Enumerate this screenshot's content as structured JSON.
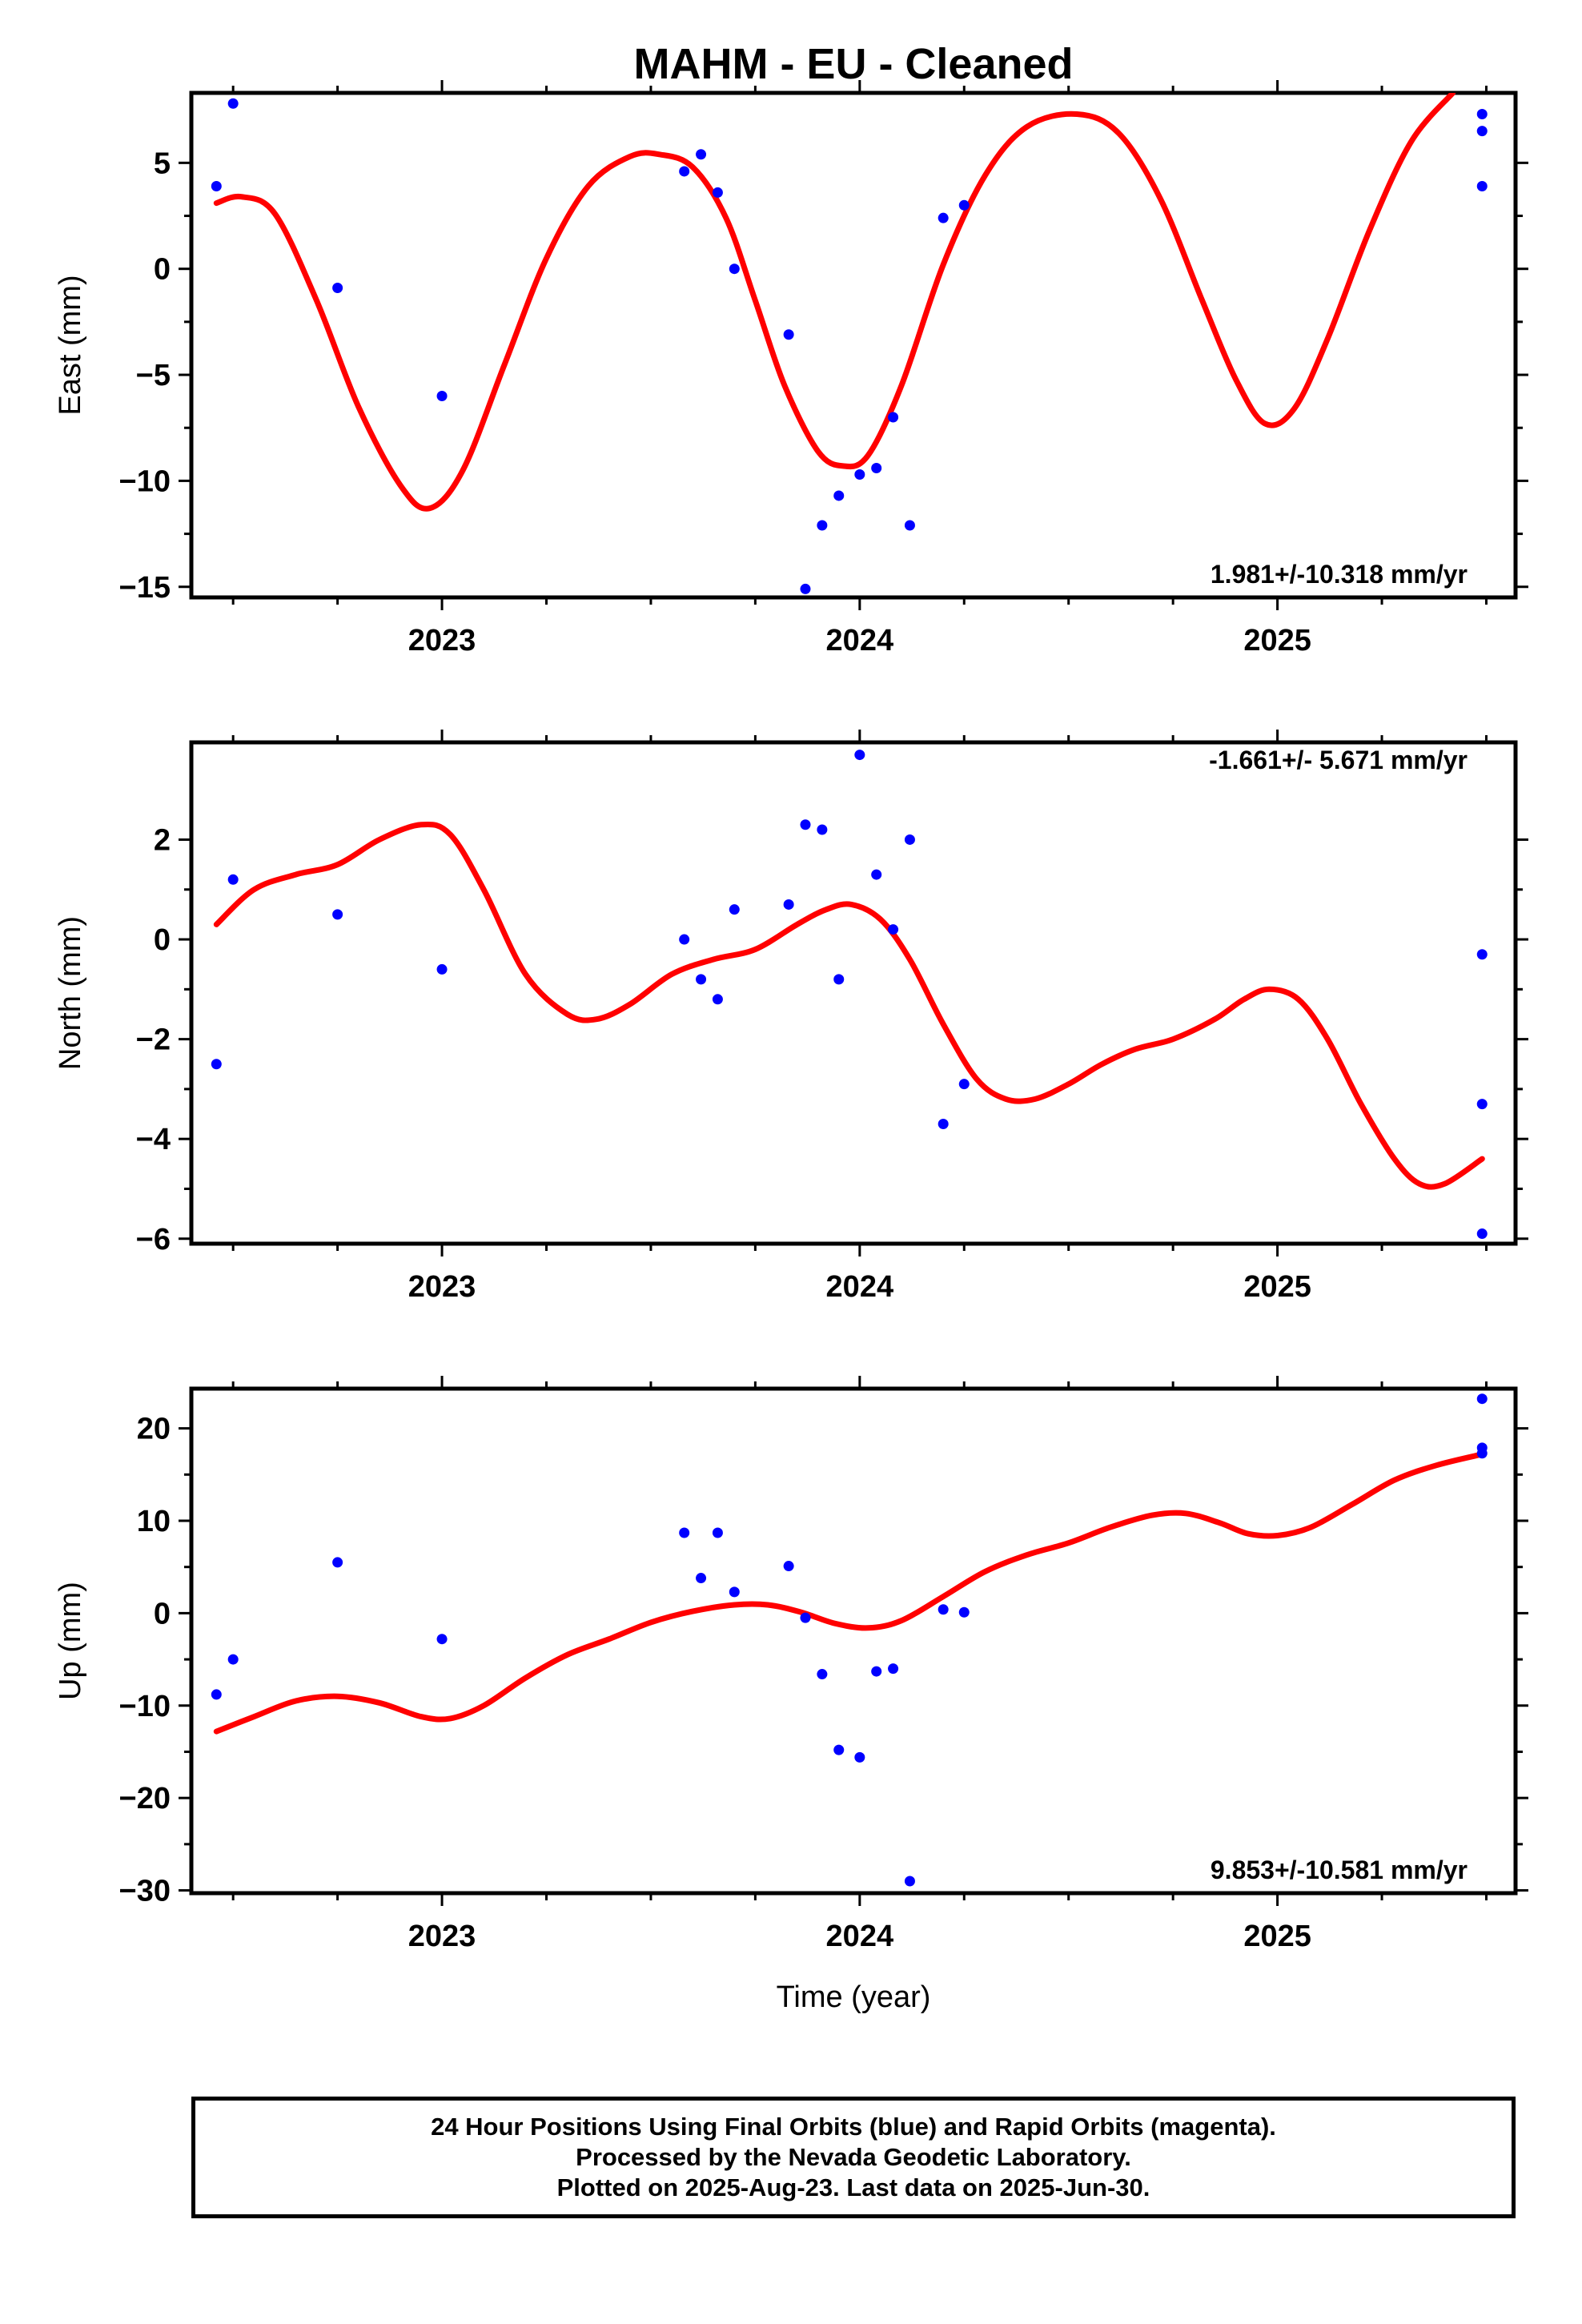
{
  "title": "MAHM  - EU - Cleaned",
  "xlabel": "Time (year)",
  "colors": {
    "points": "#0000ff",
    "fit": "#ff0000",
    "axis": "#000000"
  },
  "footer": {
    "line1": "24 Hour Positions Using Final Orbits (blue) and Rapid Orbits (magenta).",
    "line2": "Processed by the Nevada Geodetic Laboratory.",
    "line3": "Plotted on 2025-Aug-23. Last data on 2025-Jun-30."
  },
  "chart_data": [
    {
      "type": "scatter",
      "name": "east",
      "ylabel": "East (mm)",
      "rate_text": "1.981+/-10.318 mm/yr",
      "xlim": [
        2022.4,
        2025.57
      ],
      "ylim": [
        -15.5,
        8.3
      ],
      "xticks": [
        2023,
        2024,
        2025
      ],
      "yticks": [
        -15,
        -10,
        -5,
        0,
        5
      ],
      "ytick_labels": [
        "−15",
        "−10",
        "−5",
        "0",
        "5"
      ],
      "points": [
        {
          "x": 2022.46,
          "y": 3.9
        },
        {
          "x": 2022.5,
          "y": 7.8
        },
        {
          "x": 2022.75,
          "y": -0.9
        },
        {
          "x": 2023.0,
          "y": -6.0
        },
        {
          "x": 2023.58,
          "y": 4.6
        },
        {
          "x": 2023.62,
          "y": 5.4
        },
        {
          "x": 2023.66,
          "y": 3.6
        },
        {
          "x": 2023.7,
          "y": 0.0
        },
        {
          "x": 2023.83,
          "y": -3.1
        },
        {
          "x": 2023.87,
          "y": -15.1
        },
        {
          "x": 2023.91,
          "y": -12.1
        },
        {
          "x": 2023.95,
          "y": -10.7
        },
        {
          "x": 2024.0,
          "y": -9.7
        },
        {
          "x": 2024.04,
          "y": -9.4
        },
        {
          "x": 2024.08,
          "y": -7.0
        },
        {
          "x": 2024.12,
          "y": -12.1
        },
        {
          "x": 2024.2,
          "y": 2.4
        },
        {
          "x": 2024.25,
          "y": 3.0
        },
        {
          "x": 2025.49,
          "y": 7.3
        },
        {
          "x": 2025.49,
          "y": 6.5
        },
        {
          "x": 2025.49,
          "y": 3.9
        }
      ],
      "fit": [
        {
          "x": 2022.46,
          "y": 3.1
        },
        {
          "x": 2022.52,
          "y": 3.4
        },
        {
          "x": 2022.6,
          "y": 2.6
        },
        {
          "x": 2022.7,
          "y": -1.5
        },
        {
          "x": 2022.8,
          "y": -6.5
        },
        {
          "x": 2022.9,
          "y": -10.2
        },
        {
          "x": 2022.97,
          "y": -11.3
        },
        {
          "x": 2023.05,
          "y": -9.5
        },
        {
          "x": 2023.15,
          "y": -4.5
        },
        {
          "x": 2023.25,
          "y": 0.5
        },
        {
          "x": 2023.35,
          "y": 3.9
        },
        {
          "x": 2023.45,
          "y": 5.3
        },
        {
          "x": 2023.52,
          "y": 5.4
        },
        {
          "x": 2023.6,
          "y": 4.8
        },
        {
          "x": 2023.68,
          "y": 2.4
        },
        {
          "x": 2023.75,
          "y": -1.5
        },
        {
          "x": 2023.82,
          "y": -5.5
        },
        {
          "x": 2023.9,
          "y": -8.6
        },
        {
          "x": 2023.96,
          "y": -9.3
        },
        {
          "x": 2024.02,
          "y": -8.8
        },
        {
          "x": 2024.1,
          "y": -5.5
        },
        {
          "x": 2024.2,
          "y": 0.2
        },
        {
          "x": 2024.3,
          "y": 4.4
        },
        {
          "x": 2024.4,
          "y": 6.7
        },
        {
          "x": 2024.52,
          "y": 7.3
        },
        {
          "x": 2024.62,
          "y": 6.4
        },
        {
          "x": 2024.72,
          "y": 3.3
        },
        {
          "x": 2024.82,
          "y": -1.5
        },
        {
          "x": 2024.9,
          "y": -5.2
        },
        {
          "x": 2024.97,
          "y": -7.3
        },
        {
          "x": 2025.04,
          "y": -6.6
        },
        {
          "x": 2025.12,
          "y": -3.3
        },
        {
          "x": 2025.22,
          "y": 1.8
        },
        {
          "x": 2025.32,
          "y": 6.0
        },
        {
          "x": 2025.42,
          "y": 8.3
        }
      ]
    },
    {
      "type": "scatter",
      "name": "north",
      "ylabel": "North (mm)",
      "rate_text": "-1.661+/- 5.671 mm/yr",
      "xlim": [
        2022.4,
        2025.57
      ],
      "ylim": [
        -6.1,
        3.95
      ],
      "xticks": [
        2023,
        2024,
        2025
      ],
      "yticks": [
        -6,
        -4,
        -2,
        0,
        2
      ],
      "ytick_labels": [
        "−6",
        "−4",
        "−2",
        "0",
        "2"
      ],
      "points": [
        {
          "x": 2022.46,
          "y": -2.5
        },
        {
          "x": 2022.5,
          "y": 1.2
        },
        {
          "x": 2022.75,
          "y": 0.5
        },
        {
          "x": 2023.0,
          "y": -0.6
        },
        {
          "x": 2023.58,
          "y": 0.0
        },
        {
          "x": 2023.62,
          "y": -0.8
        },
        {
          "x": 2023.66,
          "y": -1.2
        },
        {
          "x": 2023.7,
          "y": 0.6
        },
        {
          "x": 2023.83,
          "y": 0.7
        },
        {
          "x": 2023.87,
          "y": 2.3
        },
        {
          "x": 2023.91,
          "y": 2.2
        },
        {
          "x": 2023.95,
          "y": -0.8
        },
        {
          "x": 2024.0,
          "y": 3.7
        },
        {
          "x": 2024.04,
          "y": 1.3
        },
        {
          "x": 2024.08,
          "y": 0.2
        },
        {
          "x": 2024.12,
          "y": 2.0
        },
        {
          "x": 2024.2,
          "y": -3.7
        },
        {
          "x": 2024.25,
          "y": -2.9
        },
        {
          "x": 2025.49,
          "y": -0.3
        },
        {
          "x": 2025.49,
          "y": -3.3
        },
        {
          "x": 2025.49,
          "y": -5.9
        }
      ],
      "fit": [
        {
          "x": 2022.46,
          "y": 0.3
        },
        {
          "x": 2022.55,
          "y": 1.0
        },
        {
          "x": 2022.65,
          "y": 1.3
        },
        {
          "x": 2022.75,
          "y": 1.5
        },
        {
          "x": 2022.85,
          "y": 2.0
        },
        {
          "x": 2022.95,
          "y": 2.3
        },
        {
          "x": 2023.02,
          "y": 2.1
        },
        {
          "x": 2023.1,
          "y": 1.0
        },
        {
          "x": 2023.2,
          "y": -0.7
        },
        {
          "x": 2023.3,
          "y": -1.5
        },
        {
          "x": 2023.37,
          "y": -1.6
        },
        {
          "x": 2023.45,
          "y": -1.3
        },
        {
          "x": 2023.55,
          "y": -0.7
        },
        {
          "x": 2023.65,
          "y": -0.4
        },
        {
          "x": 2023.75,
          "y": -0.2
        },
        {
          "x": 2023.85,
          "y": 0.3
        },
        {
          "x": 2023.92,
          "y": 0.6
        },
        {
          "x": 2023.98,
          "y": 0.7
        },
        {
          "x": 2024.05,
          "y": 0.4
        },
        {
          "x": 2024.12,
          "y": -0.4
        },
        {
          "x": 2024.2,
          "y": -1.7
        },
        {
          "x": 2024.28,
          "y": -2.8
        },
        {
          "x": 2024.35,
          "y": -3.2
        },
        {
          "x": 2024.42,
          "y": -3.2
        },
        {
          "x": 2024.5,
          "y": -2.9
        },
        {
          "x": 2024.58,
          "y": -2.5
        },
        {
          "x": 2024.66,
          "y": -2.2
        },
        {
          "x": 2024.75,
          "y": -2.0
        },
        {
          "x": 2024.85,
          "y": -1.6
        },
        {
          "x": 2024.92,
          "y": -1.2
        },
        {
          "x": 2024.98,
          "y": -1.0
        },
        {
          "x": 2025.05,
          "y": -1.2
        },
        {
          "x": 2025.12,
          "y": -2.0
        },
        {
          "x": 2025.2,
          "y": -3.3
        },
        {
          "x": 2025.28,
          "y": -4.4
        },
        {
          "x": 2025.34,
          "y": -4.9
        },
        {
          "x": 2025.4,
          "y": -4.9
        },
        {
          "x": 2025.49,
          "y": -4.4
        }
      ]
    },
    {
      "type": "scatter",
      "name": "up",
      "ylabel": "Up (mm)",
      "rate_text": "9.853+/-10.581 mm/yr",
      "xlim": [
        2022.4,
        2025.57
      ],
      "ylim": [
        -30.3,
        24.3
      ],
      "xticks": [
        2023,
        2024,
        2025
      ],
      "yticks": [
        -30,
        -20,
        -10,
        0,
        10,
        20
      ],
      "ytick_labels": [
        "−30",
        "−20",
        "−10",
        "0",
        "10",
        "20"
      ],
      "points": [
        {
          "x": 2022.46,
          "y": -8.8
        },
        {
          "x": 2022.5,
          "y": -5.0
        },
        {
          "x": 2022.75,
          "y": 5.5
        },
        {
          "x": 2023.0,
          "y": -2.8
        },
        {
          "x": 2023.58,
          "y": 8.7
        },
        {
          "x": 2023.62,
          "y": 3.8
        },
        {
          "x": 2023.66,
          "y": 8.7
        },
        {
          "x": 2023.7,
          "y": 2.3
        },
        {
          "x": 2023.83,
          "y": 5.1
        },
        {
          "x": 2023.87,
          "y": -0.5
        },
        {
          "x": 2023.91,
          "y": -6.6
        },
        {
          "x": 2023.95,
          "y": -14.8
        },
        {
          "x": 2024.0,
          "y": -15.6
        },
        {
          "x": 2024.04,
          "y": -6.3
        },
        {
          "x": 2024.08,
          "y": -6.0
        },
        {
          "x": 2024.12,
          "y": -29.0
        },
        {
          "x": 2024.2,
          "y": 0.4
        },
        {
          "x": 2024.25,
          "y": 0.1
        },
        {
          "x": 2025.49,
          "y": 23.2
        },
        {
          "x": 2025.49,
          "y": 17.9
        },
        {
          "x": 2025.49,
          "y": 17.3
        }
      ],
      "fit": [
        {
          "x": 2022.46,
          "y": -12.8
        },
        {
          "x": 2022.55,
          "y": -11.2
        },
        {
          "x": 2022.65,
          "y": -9.5
        },
        {
          "x": 2022.75,
          "y": -9.0
        },
        {
          "x": 2022.85,
          "y": -9.7
        },
        {
          "x": 2022.95,
          "y": -11.2
        },
        {
          "x": 2023.02,
          "y": -11.4
        },
        {
          "x": 2023.1,
          "y": -10.0
        },
        {
          "x": 2023.2,
          "y": -7.0
        },
        {
          "x": 2023.3,
          "y": -4.5
        },
        {
          "x": 2023.4,
          "y": -2.8
        },
        {
          "x": 2023.5,
          "y": -1.0
        },
        {
          "x": 2023.6,
          "y": 0.2
        },
        {
          "x": 2023.7,
          "y": 0.9
        },
        {
          "x": 2023.78,
          "y": 0.9
        },
        {
          "x": 2023.86,
          "y": 0.1
        },
        {
          "x": 2023.94,
          "y": -1.1
        },
        {
          "x": 2024.02,
          "y": -1.6
        },
        {
          "x": 2024.1,
          "y": -0.8
        },
        {
          "x": 2024.2,
          "y": 1.8
        },
        {
          "x": 2024.3,
          "y": 4.5
        },
        {
          "x": 2024.4,
          "y": 6.3
        },
        {
          "x": 2024.5,
          "y": 7.6
        },
        {
          "x": 2024.6,
          "y": 9.3
        },
        {
          "x": 2024.7,
          "y": 10.6
        },
        {
          "x": 2024.78,
          "y": 10.8
        },
        {
          "x": 2024.86,
          "y": 9.8
        },
        {
          "x": 2024.93,
          "y": 8.6
        },
        {
          "x": 2025.0,
          "y": 8.4
        },
        {
          "x": 2025.08,
          "y": 9.3
        },
        {
          "x": 2025.18,
          "y": 11.8
        },
        {
          "x": 2025.28,
          "y": 14.4
        },
        {
          "x": 2025.38,
          "y": 16.0
        },
        {
          "x": 2025.49,
          "y": 17.2
        }
      ]
    }
  ]
}
